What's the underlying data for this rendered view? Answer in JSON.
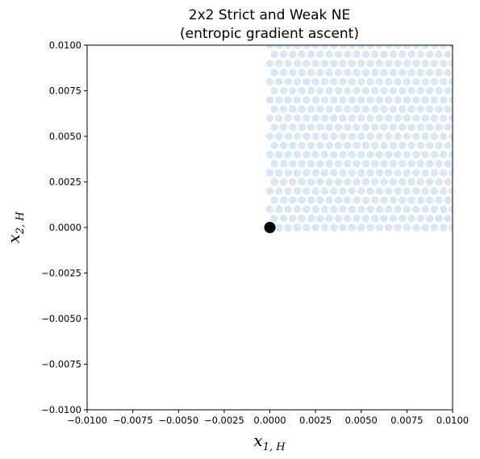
{
  "chart_data": {
    "type": "scatter",
    "title_line1": "2x2 Strict and Weak NE",
    "title_line2": "(entropic gradient ascent)",
    "xlabel_main": "x",
    "xlabel_sub": "1, H",
    "ylabel_main": "x",
    "ylabel_sub": "2, H",
    "xlim": [
      -0.01,
      0.01
    ],
    "ylim": [
      -0.01,
      0.01
    ],
    "xticks": [
      -0.01,
      -0.0075,
      -0.005,
      -0.0025,
      0.0,
      0.0025,
      0.005,
      0.0075,
      0.01
    ],
    "xtick_labels": [
      "−0.0100",
      "−0.0075",
      "−0.0050",
      "−0.0025",
      "0.0000",
      "0.0025",
      "0.0050",
      "0.0075",
      "0.0100"
    ],
    "yticks": [
      -0.01,
      -0.0075,
      -0.005,
      -0.0025,
      0.0,
      0.0025,
      0.005,
      0.0075,
      0.01
    ],
    "ytick_labels": [
      "−0.0100",
      "−0.0075",
      "−0.0050",
      "−0.0025",
      "0.0000",
      "0.0025",
      "0.0050",
      "0.0075",
      "0.0100"
    ],
    "grid": false,
    "series": [
      {
        "marker": "light-blue-circle",
        "color": "#d8e8f5",
        "x_start": 0.0,
        "x_step": 0.0005,
        "x_end": 0.01,
        "y_start": 0.0,
        "y_step": 0.0005,
        "y_end": 0.01
      },
      {
        "marker": "black-circle",
        "color": "#000000",
        "points": [
          [
            0.0,
            0.0
          ]
        ]
      }
    ]
  }
}
